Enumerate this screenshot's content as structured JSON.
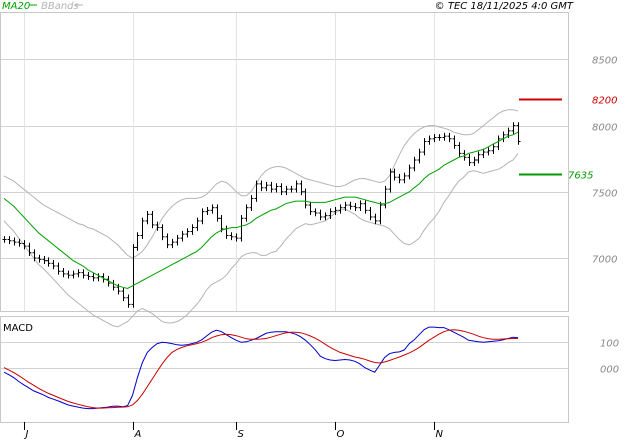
{
  "chart_data": [
    {
      "type": "ohlc",
      "panel": "price",
      "header": {
        "ma_legend": "MA20",
        "bb_legend": "BBands",
        "copyright": "© TEC 18/11/2025 4:0 GMT"
      },
      "y_ticks": [
        {
          "value": 8500,
          "label": "8500"
        },
        {
          "value": 8000,
          "label": "8000"
        },
        {
          "value": 7500,
          "label": "7500"
        },
        {
          "value": 7000,
          "label": "7000"
        }
      ],
      "ylim": [
        6600,
        8850
      ],
      "x_ticks": [
        {
          "index": 4,
          "label": "J"
        },
        {
          "index": 26,
          "label": "A"
        },
        {
          "index": 47,
          "label": "S"
        },
        {
          "index": 67,
          "label": "O"
        },
        {
          "index": 87,
          "label": "N"
        }
      ],
      "levels": [
        {
          "name": "resistance",
          "value": 8200,
          "label": "8200",
          "color": "#cc0000"
        },
        {
          "name": "support",
          "value": 7635,
          "label": "7635",
          "color": "#009900"
        }
      ],
      "closes": [
        7140,
        7130,
        7120,
        7110,
        7090,
        7040,
        7000,
        6990,
        6980,
        6960,
        6940,
        6900,
        6880,
        6870,
        6880,
        6890,
        6870,
        6860,
        6850,
        6860,
        6840,
        6810,
        6780,
        6750,
        6700,
        6650,
        7080,
        7170,
        7280,
        7330,
        7250,
        7230,
        7160,
        7100,
        7120,
        7150,
        7180,
        7200,
        7230,
        7280,
        7350,
        7360,
        7380,
        7300,
        7220,
        7170,
        7160,
        7150,
        7300,
        7380,
        7450,
        7560,
        7530,
        7550,
        7520,
        7540,
        7500,
        7520,
        7520,
        7560,
        7500,
        7400,
        7350,
        7340,
        7310,
        7320,
        7350,
        7360,
        7380,
        7400,
        7390,
        7380,
        7410,
        7360,
        7310,
        7280,
        7400,
        7520,
        7650,
        7610,
        7590,
        7620,
        7680,
        7740,
        7800,
        7880,
        7900,
        7910,
        7910,
        7920,
        7900,
        7850,
        7790,
        7760,
        7720,
        7740,
        7780,
        7800,
        7810,
        7840,
        7900,
        7930,
        7960,
        8000,
        7880
      ],
      "ma20": [
        7450,
        7420,
        7390,
        7350,
        7310,
        7270,
        7230,
        7190,
        7160,
        7130,
        7100,
        7070,
        7040,
        7010,
        6980,
        6960,
        6940,
        6910,
        6890,
        6870,
        6850,
        6830,
        6810,
        6790,
        6780,
        6770,
        6790,
        6810,
        6830,
        6850,
        6870,
        6890,
        6910,
        6930,
        6950,
        6970,
        6990,
        7010,
        7030,
        7050,
        7080,
        7120,
        7160,
        7190,
        7210,
        7220,
        7230,
        7230,
        7240,
        7250,
        7270,
        7300,
        7320,
        7340,
        7360,
        7370,
        7390,
        7410,
        7420,
        7430,
        7430,
        7430,
        7420,
        7420,
        7420,
        7420,
        7430,
        7440,
        7450,
        7460,
        7460,
        7460,
        7450,
        7440,
        7430,
        7420,
        7410,
        7410,
        7420,
        7440,
        7460,
        7480,
        7500,
        7530,
        7560,
        7600,
        7630,
        7650,
        7670,
        7700,
        7720,
        7740,
        7760,
        7770,
        7790,
        7800,
        7810,
        7820,
        7840,
        7860,
        7880,
        7900,
        7920,
        7930,
        7950
      ],
      "bb_upper": [
        7620,
        7600,
        7580,
        7550,
        7520,
        7490,
        7460,
        7430,
        7400,
        7380,
        7360,
        7340,
        7320,
        7300,
        7280,
        7260,
        7250,
        7230,
        7220,
        7200,
        7180,
        7160,
        7130,
        7100,
        7060,
        7020,
        7000,
        7020,
        7050,
        7100,
        7160,
        7230,
        7300,
        7350,
        7390,
        7420,
        7440,
        7450,
        7450,
        7450,
        7460,
        7480,
        7520,
        7560,
        7580,
        7570,
        7540,
        7500,
        7470,
        7470,
        7500,
        7560,
        7620,
        7660,
        7680,
        7690,
        7690,
        7680,
        7660,
        7640,
        7620,
        7600,
        7590,
        7580,
        7570,
        7560,
        7550,
        7540,
        7540,
        7550,
        7570,
        7590,
        7600,
        7600,
        7590,
        7580,
        7570,
        7580,
        7620,
        7700,
        7780,
        7850,
        7900,
        7940,
        7970,
        7990,
        8000,
        8000,
        7990,
        7980,
        7970,
        7950,
        7940,
        7930,
        7930,
        7940,
        7970,
        8000,
        8030,
        8060,
        8090,
        8110,
        8120,
        8120,
        8110
      ],
      "bb_lower": [
        7280,
        7240,
        7200,
        7150,
        7100,
        7050,
        7000,
        6950,
        6920,
        6880,
        6840,
        6800,
        6760,
        6720,
        6690,
        6660,
        6630,
        6600,
        6570,
        6550,
        6530,
        6510,
        6490,
        6480,
        6500,
        6520,
        6560,
        6600,
        6620,
        6600,
        6580,
        6550,
        6520,
        6510,
        6510,
        6520,
        6540,
        6570,
        6610,
        6650,
        6700,
        6760,
        6800,
        6820,
        6840,
        6870,
        6920,
        6960,
        7010,
        7030,
        7040,
        7040,
        7020,
        7020,
        7040,
        7050,
        7090,
        7140,
        7180,
        7220,
        7240,
        7260,
        7250,
        7260,
        7270,
        7280,
        7310,
        7340,
        7360,
        7370,
        7350,
        7330,
        7300,
        7280,
        7270,
        7260,
        7250,
        7240,
        7220,
        7180,
        7140,
        7110,
        7100,
        7120,
        7150,
        7210,
        7260,
        7300,
        7350,
        7420,
        7470,
        7530,
        7580,
        7610,
        7650,
        7660,
        7650,
        7640,
        7650,
        7660,
        7670,
        7690,
        7720,
        7740,
        7790
      ]
    },
    {
      "type": "line",
      "panel": "macd",
      "title": "MACD",
      "y_ticks": [
        {
          "value": 100,
          "label": "100"
        },
        {
          "value": 0,
          "label": "000"
        }
      ],
      "ylim": [
        -215,
        200
      ],
      "series": [
        {
          "name": "MACD",
          "color": "#0000cc",
          "values": [
            -18,
            -28,
            -40,
            -55,
            -68,
            -80,
            -92,
            -100,
            -108,
            -118,
            -125,
            -132,
            -140,
            -148,
            -152,
            -156,
            -160,
            -162,
            -162,
            -160,
            -158,
            -156,
            -153,
            -152,
            -155,
            -150,
            -110,
            -40,
            20,
            60,
            80,
            95,
            100,
            98,
            95,
            90,
            88,
            90,
            95,
            100,
            110,
            125,
            140,
            148,
            142,
            130,
            118,
            108,
            100,
            102,
            108,
            115,
            125,
            135,
            140,
            142,
            142,
            142,
            138,
            132,
            122,
            108,
            90,
            70,
            45,
            35,
            30,
            28,
            30,
            32,
            30,
            25,
            15,
            0,
            -10,
            -18,
            10,
            40,
            55,
            60,
            62,
            70,
            95,
            110,
            130,
            150,
            160,
            160,
            158,
            158,
            150,
            140,
            130,
            120,
            108,
            105,
            102,
            100,
            102,
            104,
            106,
            110,
            115,
            120,
            118
          ]
        },
        {
          "name": "Signal",
          "color": "#cc0000",
          "values": [
            0,
            -10,
            -20,
            -32,
            -45,
            -58,
            -70,
            -82,
            -92,
            -102,
            -110,
            -118,
            -126,
            -134,
            -140,
            -145,
            -150,
            -155,
            -158,
            -160,
            -160,
            -159,
            -158,
            -157,
            -156,
            -155,
            -148,
            -130,
            -105,
            -75,
            -45,
            -15,
            15,
            40,
            60,
            72,
            80,
            86,
            90,
            95,
            100,
            108,
            118,
            125,
            130,
            132,
            130,
            126,
            120,
            114,
            112,
            112,
            113,
            115,
            120,
            126,
            132,
            137,
            140,
            140,
            138,
            132,
            125,
            116,
            105,
            92,
            80,
            70,
            60,
            54,
            48,
            42,
            38,
            33,
            26,
            20,
            18,
            22,
            28,
            35,
            42,
            50,
            58,
            68,
            80,
            94,
            108,
            120,
            132,
            142,
            148,
            150,
            148,
            144,
            138,
            132,
            124,
            118,
            114,
            112,
            112,
            113,
            114,
            115,
            115
          ]
        }
      ]
    }
  ]
}
